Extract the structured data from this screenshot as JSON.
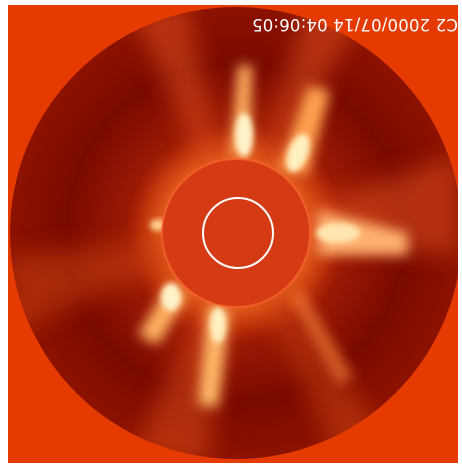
{
  "image": {
    "overlay_text": "C2 2000/07/14 04:06:05",
    "colors": {
      "background_red": "#e53a00",
      "outer_field": "#7a0a00",
      "occulter": "#d43a14",
      "sun_circle": "#ffffff",
      "streamer_glow": "#ffe2a0"
    }
  }
}
